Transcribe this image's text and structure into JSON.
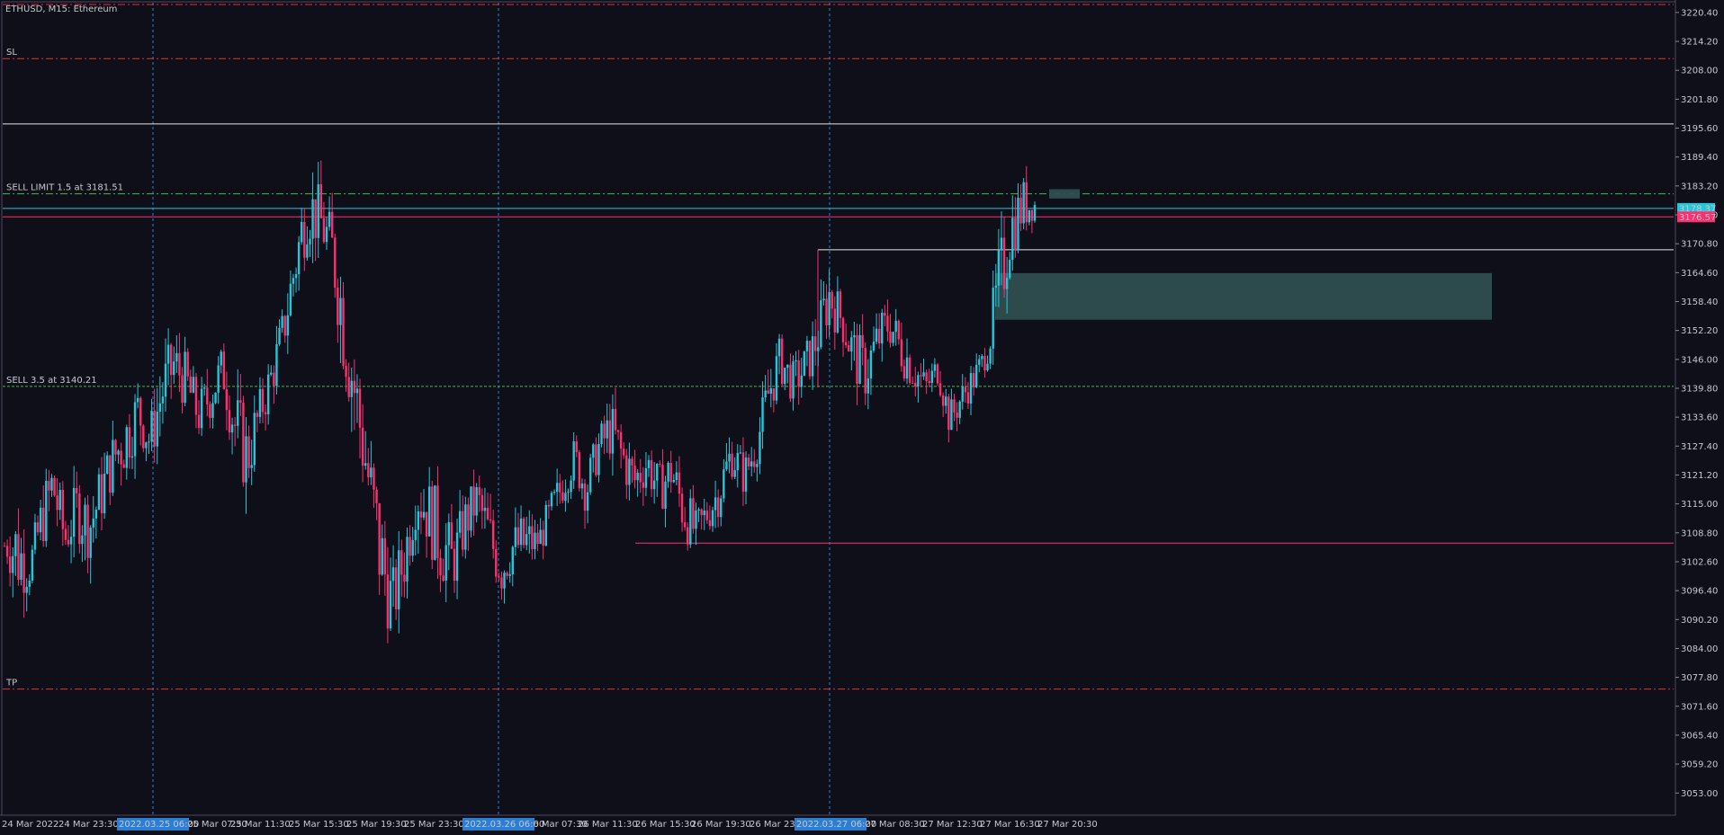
{
  "window": {
    "title": "ETHUSD, M15:  Ethereum"
  },
  "colors": {
    "background": "#0f0f1a",
    "bull": "#26c6da",
    "bear": "#ff2e6e",
    "stop_line": "#e0303a",
    "sell_limit_line": "#38c048",
    "sell_line": "#38c048",
    "ask_line": "#26c6da",
    "bid_line": "#ff2e6e",
    "zone_fill": "#2f4f4f",
    "period_separator": "#2a7fd4",
    "axis_text": "#c8c8d0"
  },
  "chart_data": {
    "type": "candlestick",
    "symbol": "ETHUSD",
    "timeframe": "M15",
    "ylim": [
      3049.0,
      3222.5
    ],
    "y_ticks": [
      "3220.40",
      "3214.20",
      "3208.00",
      "3201.80",
      "3195.60",
      "3189.40",
      "3183.20",
      "3177.00",
      "3170.80",
      "3164.60",
      "3158.40",
      "3152.20",
      "3146.00",
      "3139.80",
      "3133.60",
      "3127.40",
      "3121.20",
      "3115.00",
      "3108.80",
      "3102.60",
      "3096.40",
      "3090.20",
      "3084.00",
      "3077.80",
      "3071.60",
      "3065.40",
      "3059.20",
      "3053.00"
    ],
    "x_ticks": [
      "24 Mar 2022",
      "24 Mar 23:30",
      "25 Mar 07:30",
      "25 Mar 11:30",
      "25 Mar 15:30",
      "25 Mar 19:30",
      "25 Mar 23:30",
      "26 Mar 07:30",
      "26 Mar 11:30",
      "26 Mar 15:30",
      "26 Mar 19:30",
      "26 Mar 23:3",
      "27 Mar 08:30",
      "27 Mar 12:30",
      "27 Mar 16:30",
      "27 Mar 20:30"
    ],
    "x_highlight_labels": [
      "2022.03.25 06:00",
      "2022.03.26 06:00",
      "2022.03.27 06:00"
    ],
    "price_labels": {
      "ask": "3178.37",
      "bid": "3176.57"
    },
    "levels": [
      {
        "label": "SL",
        "price": 3210.5
      },
      {
        "label": "SELL LIMIT 1.5 at 3181.51",
        "price": 3181.51
      },
      {
        "label": "SELL 3.5 at 3140.21",
        "price": 3140.21
      },
      {
        "label": "TP",
        "price": 3075.3
      }
    ],
    "candle_path": [
      [
        3108,
        3104
      ],
      [
        3118,
        3092
      ],
      [
        3105,
        3096
      ],
      [
        3118,
        3104
      ],
      [
        3128,
        3110
      ],
      [
        3113,
        3102
      ],
      [
        3122,
        3106
      ],
      [
        3118,
        3102
      ],
      [
        3125,
        3110
      ],
      [
        3132,
        3118
      ],
      [
        3138,
        3120
      ],
      [
        3142,
        3128
      ],
      [
        3135,
        3122
      ],
      [
        3148,
        3130
      ],
      [
        3152,
        3138
      ],
      [
        3148,
        3134
      ],
      [
        3140,
        3128
      ],
      [
        3145,
        3132
      ],
      [
        3150,
        3138
      ],
      [
        3142,
        3122
      ],
      [
        3135,
        3115
      ],
      [
        3140,
        3128
      ],
      [
        3148,
        3136
      ],
      [
        3158,
        3146
      ],
      [
        3175,
        3158
      ],
      [
        3188,
        3170
      ],
      [
        3184,
        3168
      ],
      [
        3178,
        3162
      ],
      [
        3168,
        3140
      ],
      [
        3150,
        3125
      ],
      [
        3132,
        3110
      ],
      [
        3118,
        3090
      ],
      [
        3102,
        3085
      ],
      [
        3112,
        3095
      ],
      [
        3125,
        3110
      ],
      [
        3122,
        3104
      ],
      [
        3118,
        3096
      ],
      [
        3110,
        3095
      ],
      [
        3118,
        3104
      ],
      [
        3122,
        3110
      ],
      [
        3116,
        3100
      ],
      [
        3108,
        3094
      ],
      [
        3112,
        3100
      ],
      [
        3115,
        3098
      ],
      [
        3110,
        3104
      ],
      [
        3118,
        3106
      ],
      [
        3124,
        3114
      ],
      [
        3130,
        3120
      ],
      [
        3124,
        3112
      ],
      [
        3132,
        3122
      ],
      [
        3138,
        3124
      ],
      [
        3132,
        3118
      ],
      [
        3126,
        3114
      ],
      [
        3130,
        3118
      ],
      [
        3124,
        3112
      ],
      [
        3128,
        3116
      ],
      [
        3122,
        3106
      ],
      [
        3114,
        3104
      ],
      [
        3118,
        3108
      ],
      [
        3124,
        3112
      ],
      [
        3132,
        3120
      ],
      [
        3126,
        3116
      ],
      [
        3132,
        3122
      ],
      [
        3145,
        3132
      ],
      [
        3152,
        3140
      ],
      [
        3146,
        3136
      ],
      [
        3150,
        3138
      ],
      [
        3156,
        3144
      ],
      [
        3168,
        3152
      ],
      [
        3160,
        3150
      ],
      [
        3155,
        3140
      ],
      [
        3150,
        3136
      ],
      [
        3156,
        3144
      ],
      [
        3160,
        3148
      ],
      [
        3154,
        3142
      ],
      [
        3150,
        3138
      ],
      [
        3144,
        3136
      ],
      [
        3148,
        3140
      ],
      [
        3138,
        3128
      ],
      [
        3142,
        3134
      ],
      [
        3146,
        3138
      ],
      [
        3150,
        3144
      ],
      [
        3172,
        3148
      ],
      [
        3182,
        3166
      ],
      [
        3186,
        3172
      ],
      [
        3182,
        3176
      ]
    ],
    "zones": [
      {
        "price_high": 3182.5,
        "price_low": 3180.5
      },
      {
        "price_high": 3164.5,
        "price_low": 3154.5
      }
    ],
    "range_lines": [
      {
        "price": 3196.5
      },
      {
        "price": 3169.5
      },
      {
        "price": 3106.6
      }
    ]
  }
}
